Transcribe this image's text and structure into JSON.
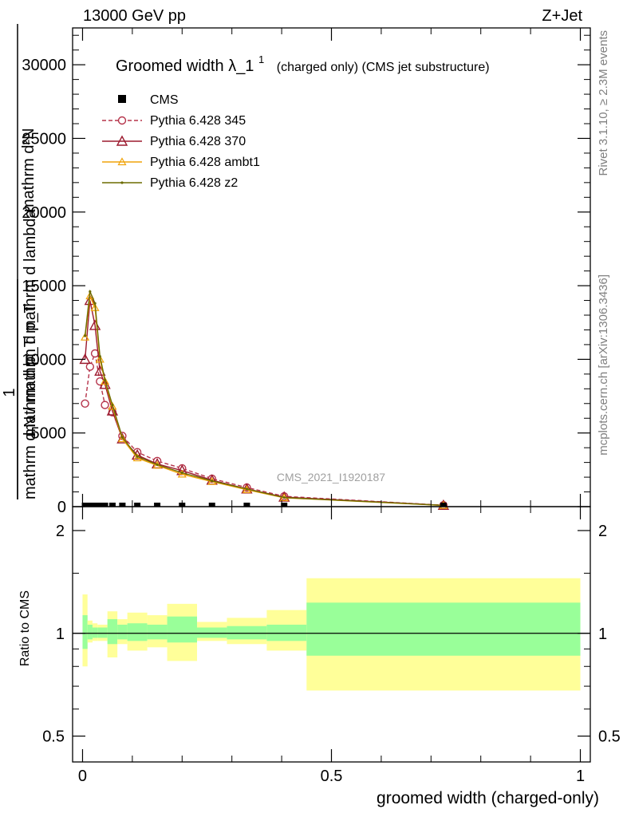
{
  "header": {
    "left": "13000 GeV pp",
    "right": "Z+Jet"
  },
  "side": {
    "rivet": "Rivet 3.1.10, ≥ 2.3M events",
    "mcplots": "mcplots.cern.ch [arXiv:1306.3436]"
  },
  "watermark": "CMS_2021_I1920187",
  "chart_data": [
    {
      "type": "line",
      "title": "Groomed width",
      "title_symbol": "λ_1",
      "title_superscript": "1",
      "title_suffix": "(charged only) (CMS jet substructure)",
      "ylabel_lines": [
        "mathrm d²N",
        "mathrm d p_T mathrm d lambda",
        "1",
        "mathrm d N / mathrm d p_T"
      ],
      "xlim": [
        -0.02,
        1.02
      ],
      "ylim": [
        0,
        32500
      ],
      "yticks": [
        0,
        5000,
        10000,
        15000,
        20000,
        25000,
        30000
      ],
      "ytick_labels": [
        "0",
        "5000",
        "10000",
        "15000",
        "20000",
        "25000",
        "30000"
      ],
      "legend_position": "top-left",
      "cms": {
        "name": "CMS",
        "color": "#000000",
        "x": [
          0.005,
          0.015,
          0.025,
          0.035,
          0.045,
          0.06,
          0.08,
          0.11,
          0.15,
          0.2,
          0.26,
          0.33,
          0.405,
          0.725
        ],
        "y": [
          0,
          0,
          0,
          0,
          0,
          0,
          0,
          0,
          0,
          0,
          0,
          0,
          0,
          0
        ]
      },
      "series": [
        {
          "name": "Pythia 6.428 345",
          "color": "#b5334a",
          "marker": "circle",
          "dashed": true,
          "x": [
            0.005,
            0.015,
            0.025,
            0.035,
            0.045,
            0.06,
            0.08,
            0.11,
            0.15,
            0.2,
            0.26,
            0.33,
            0.405,
            0.725
          ],
          "y": [
            7000,
            9500,
            10400,
            8500,
            6900,
            6400,
            4800,
            3700,
            3100,
            2600,
            1900,
            1300,
            700,
            100
          ]
        },
        {
          "name": "Pythia 6.428 370",
          "color": "#9c1a2e",
          "marker": "triangle-open",
          "dashed": false,
          "x": [
            0.005,
            0.015,
            0.025,
            0.035,
            0.045,
            0.06,
            0.08,
            0.11,
            0.15,
            0.2,
            0.26,
            0.33,
            0.405,
            0.725
          ],
          "y": [
            10000,
            14000,
            12300,
            9200,
            8300,
            6500,
            4600,
            3500,
            2900,
            2450,
            1800,
            1200,
            650,
            90
          ]
        },
        {
          "name": "Pythia 6.428 ambt1",
          "color": "#f0a30a",
          "marker": "triangle-small",
          "dashed": false,
          "x": [
            0.005,
            0.015,
            0.025,
            0.035,
            0.045,
            0.06,
            0.08,
            0.11,
            0.15,
            0.2,
            0.26,
            0.33,
            0.405,
            0.725
          ],
          "y": [
            11500,
            14300,
            13500,
            10000,
            8500,
            6800,
            4600,
            3300,
            2800,
            2200,
            1700,
            1150,
            600,
            80
          ]
        },
        {
          "name": "Pythia 6.428 z2",
          "color": "#6b6b00",
          "marker": "dot",
          "dashed": false,
          "x": [
            0.005,
            0.015,
            0.025,
            0.035,
            0.045,
            0.06,
            0.08,
            0.11,
            0.15,
            0.2,
            0.26,
            0.33,
            0.405,
            0.725
          ],
          "y": [
            11600,
            14600,
            13800,
            10200,
            8600,
            6900,
            4700,
            3400,
            2850,
            2300,
            1750,
            1200,
            620,
            85
          ]
        }
      ]
    },
    {
      "type": "area",
      "ylabel": "Ratio to CMS",
      "xlabel": "groomed width (charged-only)",
      "xlim": [
        -0.02,
        1.02
      ],
      "ylim": [
        0.42,
        2.35
      ],
      "yticks": [
        0.5,
        1,
        2
      ],
      "ytick_labels": [
        "0.5",
        "1",
        "2"
      ],
      "xticks": [
        0,
        0.5,
        1
      ],
      "xtick_labels": [
        "0",
        "0.5",
        "1"
      ],
      "reference": 1,
      "bands": [
        {
          "x0": 0.0,
          "x1": 0.01,
          "inner": [
            0.9,
            1.13
          ],
          "outer": [
            0.8,
            1.3
          ]
        },
        {
          "x0": 0.01,
          "x1": 0.02,
          "inner": [
            0.96,
            1.06
          ],
          "outer": [
            0.94,
            1.09
          ]
        },
        {
          "x0": 0.02,
          "x1": 0.03,
          "inner": [
            0.97,
            1.04
          ],
          "outer": [
            0.95,
            1.07
          ]
        },
        {
          "x0": 0.03,
          "x1": 0.05,
          "inner": [
            0.97,
            1.04
          ],
          "outer": [
            0.95,
            1.06
          ]
        },
        {
          "x0": 0.05,
          "x1": 0.07,
          "inner": [
            0.93,
            1.1
          ],
          "outer": [
            0.85,
            1.16
          ]
        },
        {
          "x0": 0.07,
          "x1": 0.09,
          "inner": [
            0.96,
            1.06
          ],
          "outer": [
            0.93,
            1.1
          ]
        },
        {
          "x0": 0.09,
          "x1": 0.13,
          "inner": [
            0.95,
            1.07
          ],
          "outer": [
            0.89,
            1.15
          ]
        },
        {
          "x0": 0.13,
          "x1": 0.17,
          "inner": [
            0.96,
            1.06
          ],
          "outer": [
            0.91,
            1.13
          ]
        },
        {
          "x0": 0.17,
          "x1": 0.23,
          "inner": [
            0.94,
            1.12
          ],
          "outer": [
            0.83,
            1.22
          ]
        },
        {
          "x0": 0.23,
          "x1": 0.29,
          "inner": [
            0.97,
            1.04
          ],
          "outer": [
            0.95,
            1.08
          ]
        },
        {
          "x0": 0.29,
          "x1": 0.37,
          "inner": [
            0.96,
            1.05
          ],
          "outer": [
            0.93,
            1.11
          ]
        },
        {
          "x0": 0.37,
          "x1": 0.45,
          "inner": [
            0.95,
            1.06
          ],
          "outer": [
            0.89,
            1.17
          ]
        },
        {
          "x0": 0.45,
          "x1": 1.0,
          "inner": [
            0.86,
            1.23
          ],
          "outer": [
            0.68,
            1.45
          ]
        }
      ],
      "colors": {
        "inner": "#99ff99",
        "outer": "#ffff99",
        "line": "#000000"
      }
    }
  ]
}
